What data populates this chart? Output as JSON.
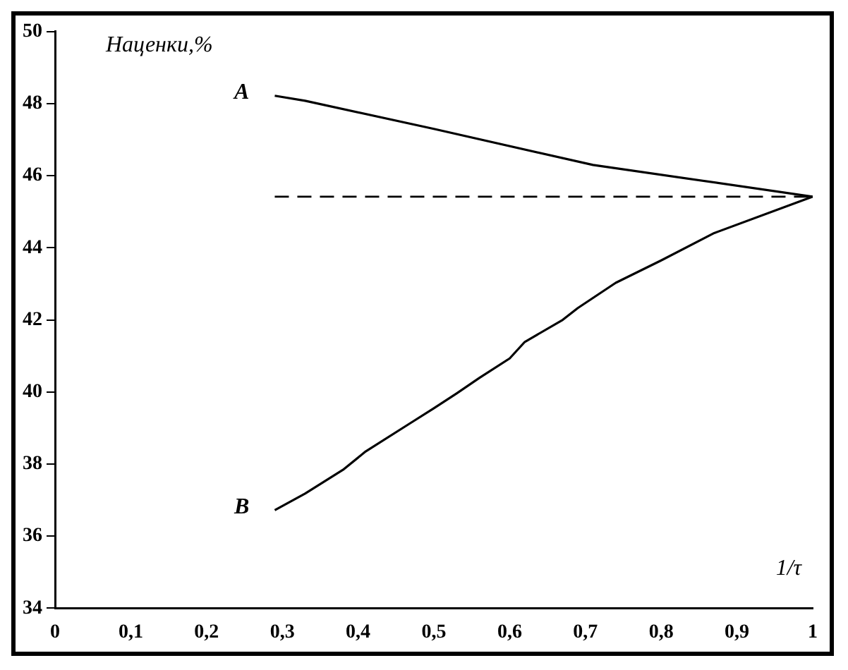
{
  "chart_data": {
    "type": "line",
    "xlabel": "1/τ",
    "ylabel": "Наценки,%",
    "xlim": [
      0,
      1
    ],
    "ylim": [
      34,
      50
    ],
    "xticks": [
      0,
      {
        "value": 0.1,
        "label": "0,1"
      },
      {
        "value": 0.2,
        "label": "0,2"
      },
      {
        "value": 0.3,
        "label": "0,3"
      },
      {
        "value": 0.4,
        "label": "0,4"
      },
      {
        "value": 0.5,
        "label": "0,5"
      },
      {
        "value": 0.6,
        "label": "0,6"
      },
      {
        "value": 0.7,
        "label": "0,7"
      },
      {
        "value": 0.8,
        "label": "0,8"
      },
      {
        "value": 0.9,
        "label": "0,9"
      },
      1
    ],
    "yticks": [
      34,
      36,
      38,
      40,
      42,
      44,
      46,
      48,
      50
    ],
    "grid": false,
    "legend": false,
    "marker": "none",
    "series": [
      {
        "color": "#000000",
        "line_style": "solid",
        "x": [
          0.29,
          0.33,
          0.5,
          0.71,
          1
        ],
        "values": [
          48.22,
          48.08,
          47.3,
          46.3,
          45.42
        ]
      },
      {
        "color": "#000000",
        "line_style": "solid",
        "x": [
          0.29,
          0.33,
          0.38,
          0.41,
          0.47,
          0.5,
          0.53,
          0.56,
          0.6,
          0.62,
          0.67,
          0.69,
          0.74,
          0.8,
          0.87,
          1
        ],
        "values": [
          36.72,
          37.18,
          37.84,
          38.35,
          39.15,
          39.55,
          39.96,
          40.39,
          40.93,
          41.39,
          42.0,
          42.33,
          43.03,
          43.65,
          44.41,
          45.42
        ]
      },
      {
        "color": "#000000",
        "line_style": "dashed",
        "x": [
          0.29,
          1
        ],
        "values": [
          45.42,
          45.42
        ]
      }
    ],
    "annotations": [
      {
        "text": "A",
        "x": 0.29,
        "y": 48.22
      },
      {
        "text": "B",
        "x": 0.29,
        "y": 36.72
      }
    ]
  }
}
